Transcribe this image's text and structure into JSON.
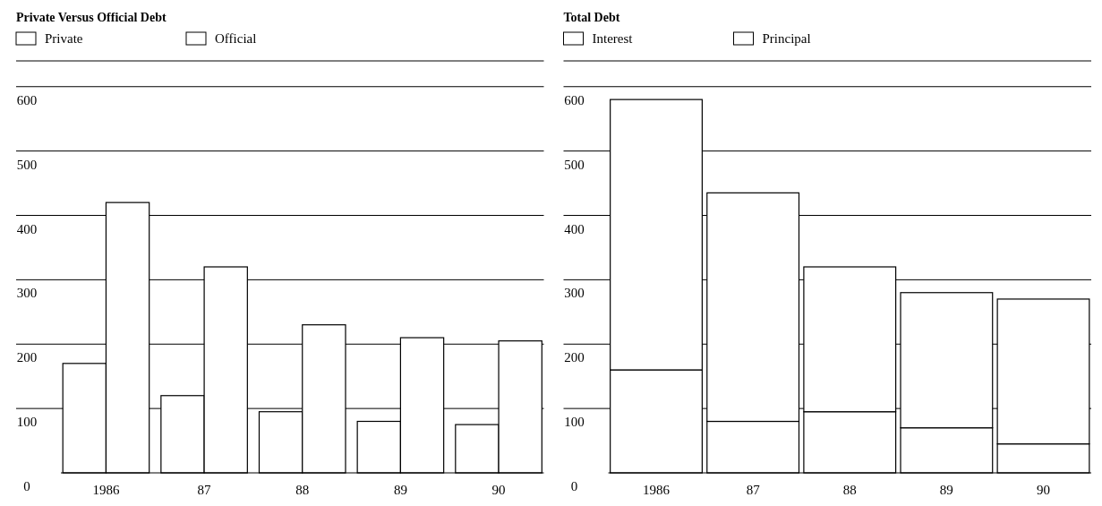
{
  "chart_data": [
    {
      "type": "bar",
      "title": "Private Versus Official Debt",
      "categories": [
        "1986",
        "87",
        "88",
        "89",
        "90"
      ],
      "series": [
        {
          "name": "Private",
          "color": "#ffffff",
          "values": [
            170,
            120,
            95,
            80,
            75
          ]
        },
        {
          "name": "Official",
          "color": "#ffffff",
          "values": [
            420,
            320,
            230,
            210,
            205
          ]
        }
      ],
      "ylim": [
        0,
        640
      ],
      "yticks": [
        0,
        100,
        200,
        300,
        400,
        500,
        600
      ],
      "grid": "y",
      "legend": "top left"
    },
    {
      "type": "bar",
      "title": "Total Debt",
      "categories": [
        "1986",
        "87",
        "88",
        "89",
        "90"
      ],
      "stacked": true,
      "series": [
        {
          "name": "Interest",
          "color": "#ffffff",
          "values": [
            160,
            80,
            95,
            70,
            45
          ]
        },
        {
          "name": "Principal",
          "color": "#ffffff",
          "values": [
            420,
            355,
            225,
            210,
            225
          ]
        }
      ],
      "ylim": [
        0,
        640
      ],
      "yticks": [
        0,
        100,
        200,
        300,
        400,
        500,
        600
      ],
      "grid": "y",
      "legend": "top left"
    }
  ]
}
